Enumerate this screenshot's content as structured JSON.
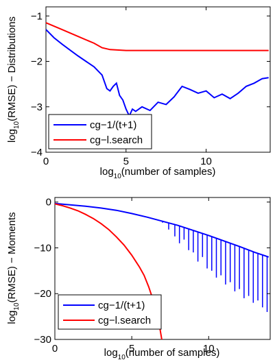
{
  "chart_data": [
    {
      "type": "line",
      "xlabel_base": "log",
      "xlabel_sub": "10",
      "xlabel_rest": "(number of samples)",
      "ylabel_base": "log",
      "ylabel_sub": "10",
      "ylabel_rest": "(RMSE) − Distributions",
      "xlim": [
        0,
        14
      ],
      "ylim": [
        -4,
        -0.8
      ],
      "xticks": [
        0,
        5,
        10
      ],
      "yticks": [
        -4,
        -3,
        -2,
        -1
      ],
      "ytick_labels": [
        "−4",
        "−3",
        "−2",
        "−1"
      ],
      "legend_position": "bottom-left",
      "series": [
        {
          "name": "cg−1/(t+1)",
          "color": "#0000ff",
          "x": [
            0,
            0.5,
            1,
            1.5,
            2,
            2.5,
            3,
            3.5,
            3.8,
            4.0,
            4.2,
            4.4,
            4.6,
            4.8,
            5.0,
            5.2,
            5.4,
            5.6,
            5.8,
            6.0,
            6.5,
            7.0,
            7.5,
            8.0,
            8.5,
            9.0,
            9.5,
            10.0,
            10.5,
            11.0,
            11.5,
            12.0,
            12.5,
            13.0,
            13.5,
            13.9
          ],
          "y": [
            -1.3,
            -1.48,
            -1.62,
            -1.75,
            -1.88,
            -2.0,
            -2.12,
            -2.3,
            -2.6,
            -2.65,
            -2.55,
            -2.48,
            -2.75,
            -2.85,
            -3.05,
            -3.2,
            -3.05,
            -3.1,
            -3.05,
            -3.0,
            -3.08,
            -2.9,
            -2.95,
            -2.78,
            -2.55,
            -2.62,
            -2.7,
            -2.65,
            -2.8,
            -2.72,
            -2.82,
            -2.7,
            -2.55,
            -2.48,
            -2.38,
            -2.36
          ]
        },
        {
          "name": "cg−l.search",
          "color": "#ff0000",
          "x": [
            0,
            1,
            2,
            3,
            3.5,
            4,
            5,
            6,
            8,
            10,
            12,
            13.9
          ],
          "y": [
            -1.15,
            -1.3,
            -1.45,
            -1.6,
            -1.7,
            -1.74,
            -1.76,
            -1.76,
            -1.76,
            -1.76,
            -1.76,
            -1.76
          ]
        }
      ]
    },
    {
      "type": "line",
      "xlabel_base": "log",
      "xlabel_sub": "10",
      "xlabel_rest": "(number of samples)",
      "ylabel_base": "log",
      "ylabel_sub": "10",
      "ylabel_rest": "(RMSE) − Moments",
      "xlim": [
        0,
        14
      ],
      "ylim": [
        -30,
        1
      ],
      "xticks": [
        0,
        5,
        10
      ],
      "yticks": [
        -30,
        -20,
        -10,
        0
      ],
      "ytick_labels": [
        "−30",
        "−20",
        "−10",
        "0"
      ],
      "legend_position": "bottom-left",
      "series": [
        {
          "name": "cg−1/(t+1)",
          "color": "#0000ff",
          "x": [
            0,
            1,
            2,
            3,
            4,
            5,
            6,
            7,
            8,
            9,
            10,
            11,
            12,
            13,
            13.9
          ],
          "y": [
            -0.3,
            -0.6,
            -0.9,
            -1.3,
            -1.8,
            -2.5,
            -3.3,
            -4.2,
            -5.1,
            -6.2,
            -7.3,
            -8.5,
            -9.7,
            -11.0,
            -12.0
          ],
          "dips": [
            {
              "x": 6.5,
              "y": -3.8
            },
            {
              "x": 7.0,
              "y": -4.5
            },
            {
              "x": 7.4,
              "y": -6.0
            },
            {
              "x": 7.8,
              "y": -7.5
            },
            {
              "x": 8.1,
              "y": -9.0
            },
            {
              "x": 8.4,
              "y": -8.2
            },
            {
              "x": 8.7,
              "y": -10.5
            },
            {
              "x": 9.0,
              "y": -11.0
            },
            {
              "x": 9.3,
              "y": -13.0
            },
            {
              "x": 9.6,
              "y": -12.0
            },
            {
              "x": 9.9,
              "y": -14.5
            },
            {
              "x": 10.2,
              "y": -15.0
            },
            {
              "x": 10.5,
              "y": -16.5
            },
            {
              "x": 10.8,
              "y": -16.0
            },
            {
              "x": 11.1,
              "y": -18.0
            },
            {
              "x": 11.4,
              "y": -17.5
            },
            {
              "x": 11.7,
              "y": -19.5
            },
            {
              "x": 12.0,
              "y": -19.0
            },
            {
              "x": 12.3,
              "y": -21.0
            },
            {
              "x": 12.6,
              "y": -20.5
            },
            {
              "x": 12.9,
              "y": -22.0
            },
            {
              "x": 13.2,
              "y": -21.5
            },
            {
              "x": 13.5,
              "y": -23.0
            },
            {
              "x": 13.8,
              "y": -24.0
            }
          ]
        },
        {
          "name": "cg−l.search",
          "color": "#ff0000",
          "x": [
            0,
            0.5,
            1,
            1.5,
            2,
            2.5,
            3,
            3.5,
            4,
            4.5,
            5,
            5.5,
            5.8,
            6.1,
            6.4,
            6.6,
            6.8,
            6.95
          ],
          "y": [
            -0.4,
            -0.8,
            -1.3,
            -1.9,
            -2.7,
            -3.6,
            -4.7,
            -6.0,
            -7.6,
            -9.4,
            -11.6,
            -14.2,
            -16.0,
            -18.5,
            -21.5,
            -24.0,
            -27.0,
            -30.0
          ]
        }
      ]
    }
  ]
}
